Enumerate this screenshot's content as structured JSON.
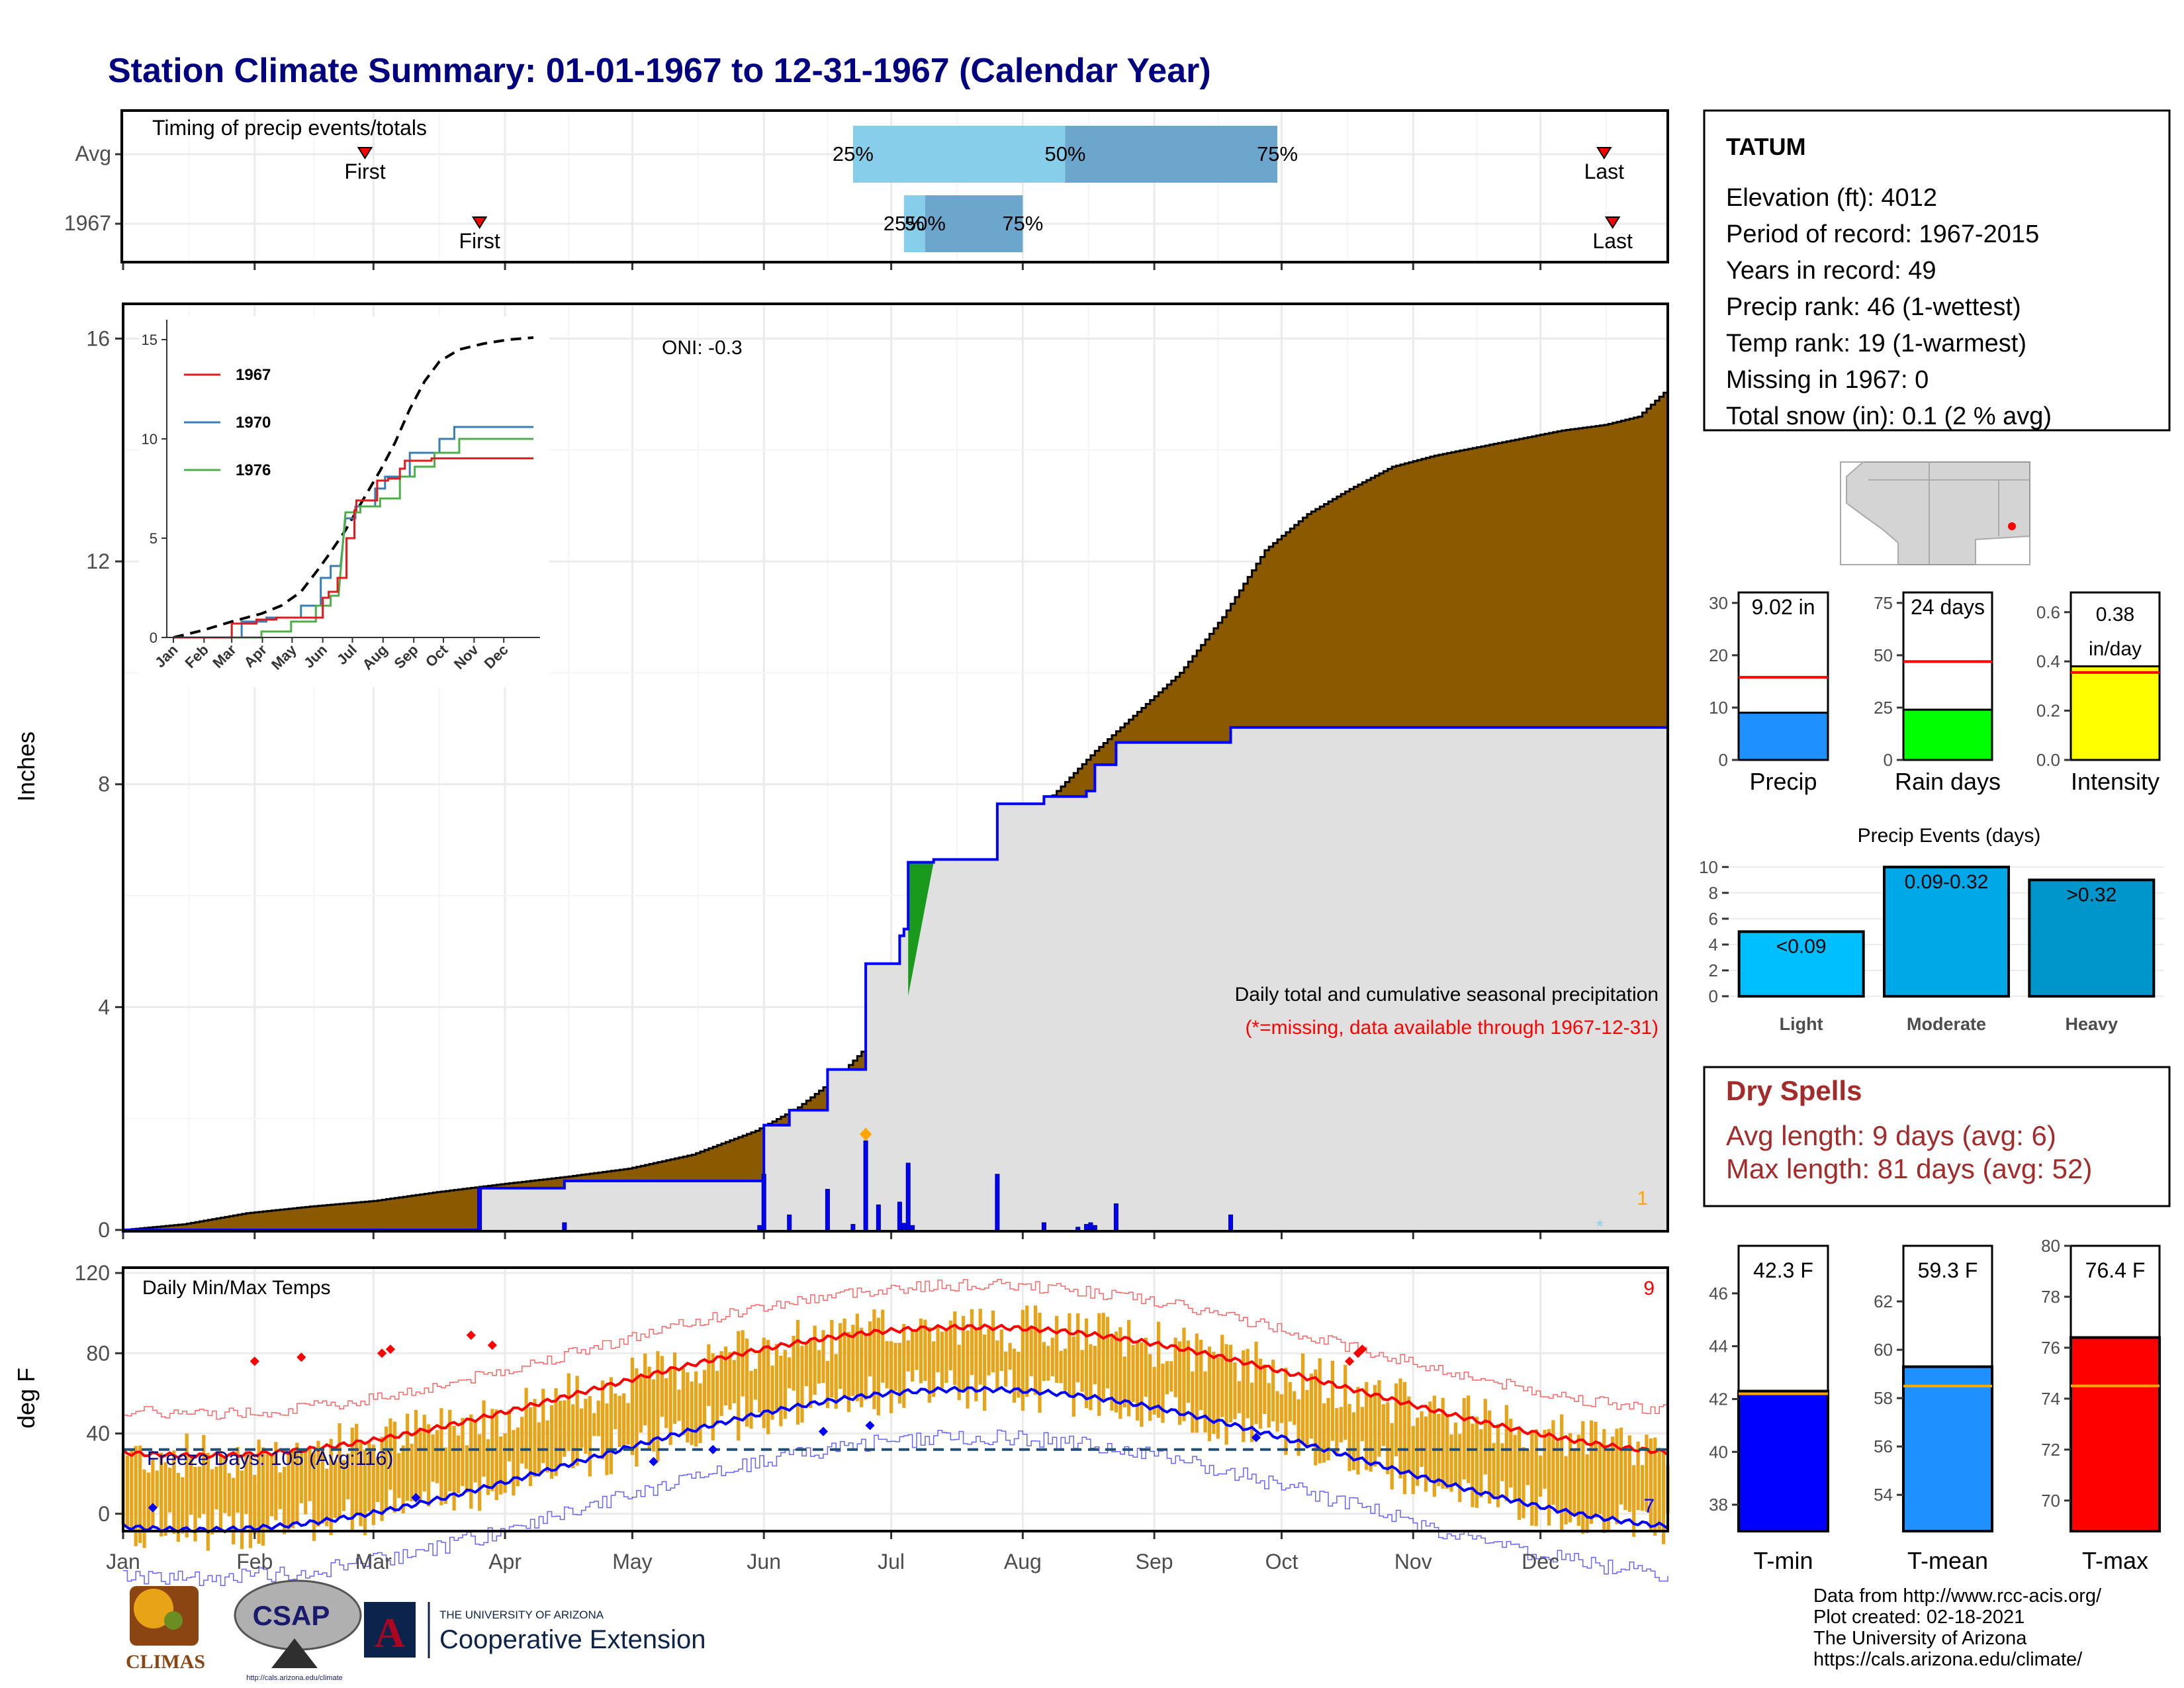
{
  "title": "Station Climate Summary: 01-01-1967 to 12-31-1967 (Calendar Year)",
  "months": [
    "Jan",
    "Feb",
    "Mar",
    "Apr",
    "May",
    "Jun",
    "Jul",
    "Aug",
    "Sep",
    "Oct",
    "Nov",
    "Dec"
  ],
  "timing": {
    "title": "Timing of precip events/totals",
    "rows": [
      {
        "label": "Avg",
        "first_doy": 58,
        "last_doy": 350,
        "p25": 173,
        "p50": 223,
        "p75": 273,
        "first_label": "First",
        "last_label": "Last"
      },
      {
        "label": "1967",
        "first_doy": 85,
        "last_doy": 352,
        "p25": 185,
        "p50": 190,
        "p75": 213,
        "first_label": "First",
        "last_label": "Last"
      }
    ],
    "pct_labels": [
      "25%",
      "50%",
      "75%"
    ]
  },
  "precip": {
    "ylabel": "Inches",
    "yticks": [
      0,
      4,
      8,
      12,
      16
    ],
    "ylim": [
      0,
      16.6
    ],
    "oni": "ONI: -0.3",
    "caption": "Daily total and cumulative seasonal precipitation",
    "missing_note": "(*=missing, data available through 1967-12-31)",
    "corner_count": "1",
    "avg_cumulative": [
      [
        1,
        0
      ],
      [
        15,
        0.1
      ],
      [
        30,
        0.3
      ],
      [
        45,
        0.42
      ],
      [
        60,
        0.52
      ],
      [
        75,
        0.68
      ],
      [
        90,
        0.82
      ],
      [
        105,
        0.95
      ],
      [
        120,
        1.1
      ],
      [
        135,
        1.35
      ],
      [
        150,
        1.78
      ],
      [
        160,
        2.2
      ],
      [
        170,
        2.8
      ],
      [
        180,
        3.6
      ],
      [
        190,
        4.6
      ],
      [
        200,
        5.7
      ],
      [
        210,
        6.8
      ],
      [
        220,
        7.8
      ],
      [
        230,
        8.6
      ],
      [
        240,
        9.3
      ],
      [
        250,
        10.0
      ],
      [
        260,
        11.0
      ],
      [
        270,
        12.2
      ],
      [
        280,
        12.85
      ],
      [
        290,
        13.3
      ],
      [
        300,
        13.7
      ],
      [
        310,
        13.9
      ],
      [
        320,
        14.05
      ],
      [
        330,
        14.2
      ],
      [
        340,
        14.35
      ],
      [
        350,
        14.45
      ],
      [
        358,
        14.6
      ],
      [
        365,
        15.1
      ]
    ],
    "obs_cumulative": [
      [
        1,
        0
      ],
      [
        85,
        0
      ],
      [
        85,
        0.75
      ],
      [
        105,
        0.75
      ],
      [
        105,
        0.88
      ],
      [
        152,
        0.88
      ],
      [
        152,
        1.88
      ],
      [
        158,
        1.88
      ],
      [
        158,
        2.15
      ],
      [
        167,
        2.15
      ],
      [
        167,
        2.88
      ],
      [
        176,
        2.88
      ],
      [
        176,
        4.78
      ],
      [
        184,
        4.78
      ],
      [
        184,
        5.28
      ],
      [
        185,
        5.28
      ],
      [
        185,
        5.4
      ],
      [
        186,
        5.4
      ],
      [
        186,
        6.6
      ],
      [
        192,
        6.6
      ],
      [
        192,
        6.65
      ],
      [
        207,
        6.65
      ],
      [
        207,
        7.65
      ],
      [
        218,
        7.65
      ],
      [
        218,
        7.78
      ],
      [
        228,
        7.78
      ],
      [
        228,
        7.88
      ],
      [
        230,
        7.88
      ],
      [
        230,
        8.35
      ],
      [
        235,
        8.35
      ],
      [
        235,
        8.75
      ],
      [
        262,
        8.75
      ],
      [
        262,
        9.02
      ],
      [
        365,
        9.02
      ]
    ],
    "daily_bars": [
      [
        85,
        0.75
      ],
      [
        105,
        0.13
      ],
      [
        151,
        0.08
      ],
      [
        152,
        1.0
      ],
      [
        158,
        0.27
      ],
      [
        167,
        0.73
      ],
      [
        173,
        0.1
      ],
      [
        176,
        1.6
      ],
      [
        179,
        0.45
      ],
      [
        184,
        0.5
      ],
      [
        185,
        0.12
      ],
      [
        186,
        1.2
      ],
      [
        187,
        0.08
      ],
      [
        207,
        1.0
      ],
      [
        218,
        0.13
      ],
      [
        226,
        0.05
      ],
      [
        228,
        0.1
      ],
      [
        229,
        0.13
      ],
      [
        230,
        0.08
      ],
      [
        235,
        0.47
      ],
      [
        262,
        0.27
      ]
    ],
    "marker_day": 176,
    "star_day": 349
  },
  "inset": {
    "yticks": [
      0,
      5,
      10,
      15
    ],
    "months": [
      "Jan",
      "Feb",
      "Mar",
      "Apr",
      "May",
      "Jun",
      "Jul",
      "Aug",
      "Sep",
      "Oct",
      "Nov",
      "Dec"
    ],
    "series": [
      {
        "name": "1967",
        "color": "#e41a1c"
      },
      {
        "name": "1970",
        "color": "#377eb8"
      },
      {
        "name": "1976",
        "color": "#4daf4a"
      }
    ]
  },
  "temps": {
    "ylabel": "deg F",
    "title": "Daily Min/Max Temps",
    "yticks": [
      0,
      40,
      80,
      120
    ],
    "ylim": [
      -8,
      122
    ],
    "freeze_label": "Freeze Days: 105 (Avg:116)",
    "freeze_line": 32,
    "count_top": "9",
    "count_bottom": "7"
  },
  "station": {
    "name": "TATUM",
    "lines": [
      "Elevation (ft): 4012",
      "Period of record: 1967-2015",
      "Years in record: 49",
      "Precip rank: 46 (1-wettest)",
      "Temp rank: 19 (1-warmest)",
      "Missing in 1967: 0",
      "Total snow (in): 0.1 (2 % avg)"
    ]
  },
  "precip_stats": [
    {
      "name": "Precip",
      "label": "9.02 in",
      "value": 9.02,
      "avg": 15.8,
      "ylim": [
        0,
        32
      ],
      "ticks": [
        0,
        10,
        20,
        30
      ],
      "color": "#1e90ff"
    },
    {
      "name": "Rain days",
      "label": "24 days",
      "value": 24,
      "avg": 47,
      "ylim": [
        0,
        80
      ],
      "ticks": [
        0,
        25,
        50,
        75
      ],
      "color": "#00ff00"
    },
    {
      "name": "Intensity",
      "label": "0.38",
      "label2": "in/day",
      "value": 0.38,
      "avg": 0.355,
      "ylim": [
        0,
        0.68
      ],
      "ticks": [
        "0.0",
        "0.2",
        "0.4",
        "0.6"
      ],
      "color": "#ffff00"
    }
  ],
  "precip_events": {
    "title": "Precip Events (days)",
    "yticks": [
      0,
      2,
      4,
      6,
      8,
      10
    ],
    "ylim": [
      0,
      10.5
    ],
    "categories": [
      "Light",
      "Moderate",
      "Heavy"
    ],
    "labels": [
      "<0.09",
      "0.09-0.32",
      ">0.32"
    ],
    "values": [
      5,
      10,
      9
    ],
    "colors": [
      "#00bfff",
      "#00a8e8",
      "#0096cc"
    ]
  },
  "dry_spells": {
    "title": "Dry Spells",
    "avg_line": "Avg length: 9 days (avg: 6)",
    "max_line": "Max length: 81 days (avg: 52)"
  },
  "temp_stats": [
    {
      "name": "T-min",
      "label": "42.3 F",
      "value": 42.3,
      "avg": 42.2,
      "ylim": [
        37,
        47.8
      ],
      "ticks": [
        38,
        40,
        42,
        44,
        46
      ],
      "color": "#0000ff"
    },
    {
      "name": "T-mean",
      "label": "59.3 F",
      "value": 59.3,
      "avg": 58.5,
      "ylim": [
        52.5,
        64.3
      ],
      "ticks": [
        54,
        56,
        58,
        60,
        62
      ],
      "color": "#1e90ff"
    },
    {
      "name": "T-max",
      "label": "76.4 F",
      "value": 76.4,
      "avg": 74.5,
      "ylim": [
        68.8,
        80
      ],
      "ticks": [
        70,
        72,
        74,
        76,
        78,
        80
      ],
      "color": "#ff0000"
    }
  ],
  "footer": {
    "lines": [
      "Data from http://www.rcc-acis.org/",
      "Plot created: 02-18-2021",
      "The University of Arizona",
      "https://cals.arizona.edu/climate/"
    ],
    "climas": "CLIMAS",
    "csap": "CSAP",
    "csap_url": "http://cals.arizona.edu/climate",
    "ua_small": "THE UNIVERSITY OF ARIZONA",
    "ua_big": "Cooperative Extension"
  },
  "colors": {
    "title": "#000080",
    "cumfill": "#8b5a00",
    "obsfill": "#e0e0e0",
    "dryspell": "#a52a2a"
  }
}
